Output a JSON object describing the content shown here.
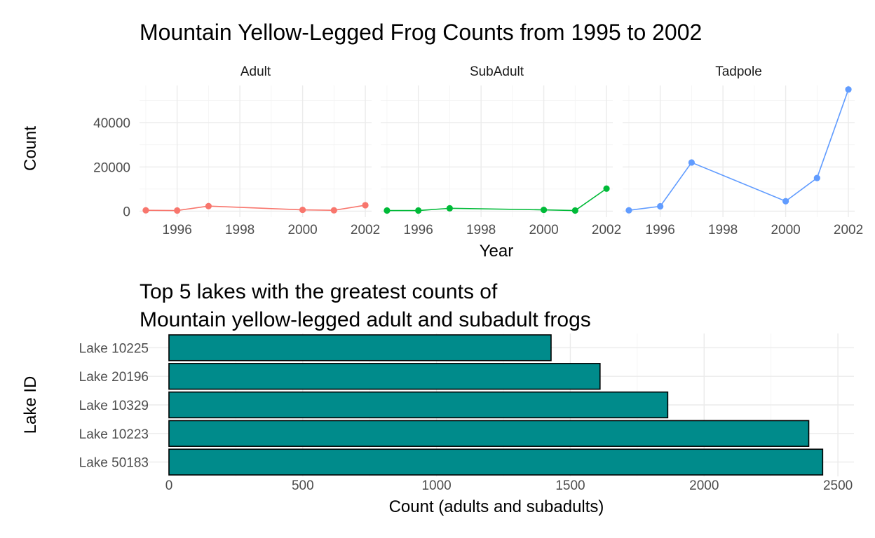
{
  "chart_data": [
    {
      "type": "line",
      "title": "Mountain Yellow-Legged Frog Counts from 1995 to 2002",
      "xlabel": "Year",
      "ylabel": "Count",
      "xlim": [
        1994.8,
        2002.2
      ],
      "ylim": [
        -2700,
        56800
      ],
      "x_ticks": [
        1996,
        1998,
        2000,
        2002
      ],
      "y_ticks": [
        0,
        20000,
        40000
      ],
      "grid": true,
      "legend": "none",
      "facets": [
        {
          "name": "Adult",
          "color": "#F8766D",
          "x": [
            1995,
            1996,
            1997,
            2000,
            2001,
            2002
          ],
          "y": [
            400,
            300,
            2300,
            600,
            400,
            2700
          ]
        },
        {
          "name": "SubAdult",
          "color": "#00BA38",
          "x": [
            1995,
            1996,
            1997,
            2000,
            2001,
            2002
          ],
          "y": [
            300,
            300,
            1300,
            600,
            300,
            10200
          ]
        },
        {
          "name": "Tadpole",
          "color": "#619CFF",
          "x": [
            1995,
            1996,
            1997,
            2000,
            2001,
            2002
          ],
          "y": [
            400,
            2200,
            22000,
            4500,
            15000,
            55000
          ]
        }
      ]
    },
    {
      "type": "bar",
      "orientation": "horizontal",
      "title_lines": [
        "Top 5 lakes with the greatest counts of",
        "Mountain yellow-legged adult and subadult frogs"
      ],
      "xlabel": "Count (adults and subadults)",
      "ylabel": "Lake ID",
      "xlim": [
        -110,
        2560
      ],
      "x_ticks": [
        0,
        500,
        1000,
        1500,
        2000,
        2500
      ],
      "grid": true,
      "legend": "none",
      "bar_color": "#008B8B",
      "bar_outline": "#000000",
      "categories": [
        "Lake 10225",
        "Lake 20196",
        "Lake 10329",
        "Lake 10223",
        "Lake 50183"
      ],
      "values": [
        1428,
        1611,
        1864,
        2391,
        2443
      ]
    }
  ]
}
